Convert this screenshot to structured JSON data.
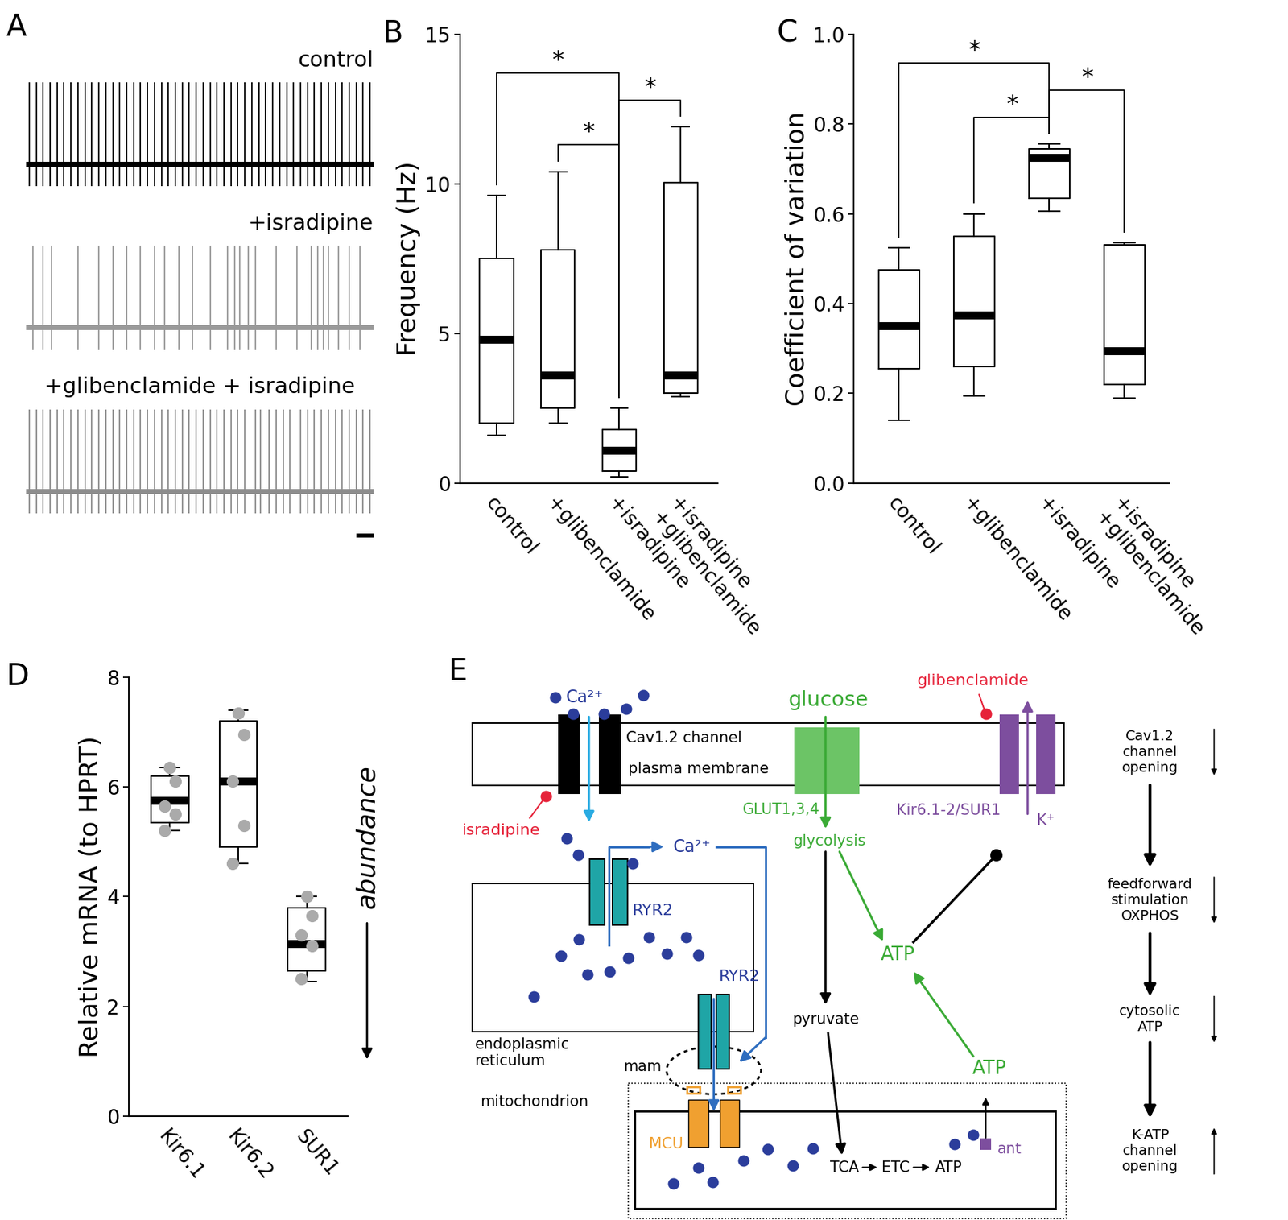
{
  "chart_data": [
    {
      "panel": "B",
      "type": "box",
      "y_label": "Frequency (Hz)",
      "categories": [
        "control",
        "+glibenclamide",
        "+isradipine",
        "+isradipine\n+glibenclamide"
      ],
      "whisker_low": [
        1.6,
        2.0,
        0.2,
        2.9
      ],
      "q1": [
        2.0,
        2.5,
        0.4,
        3.0
      ],
      "median": [
        4.8,
        3.6,
        1.1,
        3.6
      ],
      "q3": [
        7.5,
        7.8,
        1.8,
        10.05
      ],
      "whisker_high": [
        9.6,
        10.4,
        2.5,
        11.9
      ],
      "color": "#000000",
      "ylim": [
        0,
        15
      ],
      "yticks": [
        0,
        5,
        10,
        15
      ],
      "significance": [
        {
          "pair": [
            0,
            2
          ],
          "label": "*"
        },
        {
          "pair": [
            1,
            2
          ],
          "label": "*"
        },
        {
          "pair": [
            2,
            3
          ],
          "label": "*"
        }
      ]
    },
    {
      "panel": "C",
      "type": "box",
      "y_label": "Coefficient of variation",
      "categories": [
        "control",
        "+glibenclamide",
        "+isradipine",
        "+isradipine\n+glibenclamide"
      ],
      "whisker_low": [
        0.14,
        0.195,
        0.605,
        0.19
      ],
      "q1": [
        0.255,
        0.26,
        0.635,
        0.22
      ],
      "median": [
        0.35,
        0.375,
        0.725,
        0.295
      ],
      "q3": [
        0.475,
        0.55,
        0.745,
        0.53
      ],
      "whisker_high": [
        0.525,
        0.6,
        0.755,
        0.535
      ],
      "color": "#000000",
      "ylim": [
        0,
        1
      ],
      "yticks": [
        {
          "value": 0,
          "label": "0.0"
        },
        {
          "value": 0.2,
          "label": "0.2"
        },
        {
          "value": 0.4,
          "label": "0.4"
        },
        {
          "value": 0.6,
          "label": "0.6"
        },
        {
          "value": 0.8,
          "label": "0.8"
        },
        {
          "value": 1,
          "label": "1.0"
        }
      ],
      "significance": [
        {
          "pair": [
            0,
            2
          ],
          "label": "*"
        },
        {
          "pair": [
            1,
            2
          ],
          "label": "*"
        },
        {
          "pair": [
            2,
            3
          ],
          "label": "*"
        }
      ]
    },
    {
      "panel": "D",
      "type": "box",
      "y_label": "Relative mRNA (to HPRT)",
      "categories": [
        "Kir6.1",
        "Kir6.2",
        "SUR1"
      ],
      "whisker_low": [
        5.2,
        4.6,
        2.45
      ],
      "q1": [
        5.35,
        4.9,
        2.65
      ],
      "median": [
        5.75,
        6.1,
        3.15
      ],
      "q3": [
        6.2,
        7.2,
        3.8
      ],
      "whisker_high": [
        6.35,
        7.4,
        4.0
      ],
      "points": [
        [
          6.35,
          6.1,
          5.65,
          5.5,
          5.2
        ],
        [
          7.35,
          6.95,
          6.1,
          5.3,
          4.6
        ],
        [
          4.0,
          3.65,
          3.3,
          3.1,
          2.5
        ]
      ],
      "color": "#000000",
      "ylim": [
        0,
        8
      ],
      "yticks": [
        0,
        2,
        4,
        6,
        8
      ],
      "annotation": "abundance"
    }
  ],
  "traces": {
    "panel": "A",
    "type": "trace",
    "xlim": [
      0,
      100
    ],
    "series": [
      {
        "name": "control",
        "color": "#000000",
        "spike_times": [
          1,
          3,
          5,
          7,
          9,
          11,
          13,
          15,
          17,
          19,
          21,
          23,
          25,
          27,
          29,
          31,
          33,
          35,
          37,
          39,
          41,
          43,
          45,
          47,
          49,
          51,
          53,
          55,
          57,
          59,
          61,
          63,
          65,
          67,
          69,
          71,
          73,
          75,
          77,
          79,
          81,
          83,
          85,
          87,
          89,
          91,
          93,
          95,
          97,
          99
        ]
      },
      {
        "name": "+isradipine",
        "color": "#999999",
        "spike_times": [
          2,
          5,
          7.5,
          15,
          21,
          25,
          29,
          33,
          37,
          40,
          44,
          48,
          53,
          58,
          60,
          61.5,
          64,
          66,
          72,
          78,
          82,
          84,
          85.5,
          87,
          90,
          93,
          96
        ]
      },
      {
        "name": "+glibenclamide + isradipine",
        "color": "#8c8c8c",
        "spike_times": [
          1,
          3,
          5,
          7,
          9,
          11,
          13,
          15,
          17,
          19,
          21,
          23,
          25,
          27,
          29,
          31,
          33,
          35,
          37,
          39,
          41,
          43,
          45,
          47,
          49,
          51,
          53,
          55,
          57,
          59,
          61,
          63,
          66,
          67.5,
          70,
          72,
          74,
          76,
          79,
          81,
          83,
          85,
          87,
          89,
          91,
          93,
          95,
          97,
          99
        ]
      }
    ]
  },
  "diagram": {
    "panel": "E",
    "labels": {
      "ca_outside": "Ca²⁺",
      "ca_cytosol": "Ca²⁺",
      "cav": "Cav1.2 channel",
      "membrane": "plasma membrane",
      "isradipine": "isradipine",
      "ryr2_upper": "RYR2",
      "ryr2_lower": "RYR2",
      "er": "endoplasmic\nreticulum",
      "mam": "mam",
      "mito": "mitochondrion",
      "mcu": "MCU",
      "tca": "TCA",
      "etc": "ETC",
      "atp_mito": "ATP",
      "ant": "ant",
      "atp_exported": "ATP",
      "atp_cytosol": "ATP",
      "glucose": "glucose",
      "glut": "GLUT1,3,4",
      "glycolysis": "glycolysis",
      "pyruvate": "pyruvate",
      "glibenclamide": "glibenclamide",
      "katp": "Kir6.1-2/SUR1",
      "k_ion": "K⁺"
    },
    "cascade": [
      {
        "label": "Cav1.2\nchannel\nopening",
        "direction": "down"
      },
      {
        "label": "feedforward\nstimulation\nOXPHOS",
        "direction": "down"
      },
      {
        "label": "cytosolic\nATP",
        "direction": "down"
      },
      {
        "label": "K-ATP\nchannel\nopening",
        "direction": "up"
      }
    ]
  }
}
